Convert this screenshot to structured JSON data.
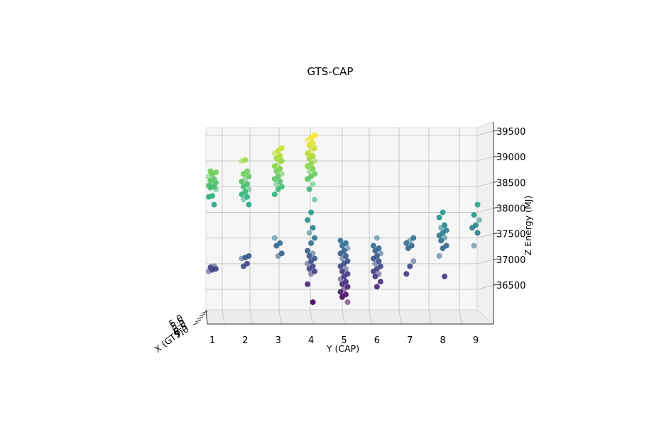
{
  "chart_data": {
    "type": "scatter",
    "projection": "3d",
    "title": "GTS-CAP",
    "xlabel": "X (GTS)",
    "ylabel": "Y (CAP)",
    "zlabel": "Z Energy (MJ)",
    "x_ticks": [
      "7.0",
      "6.5",
      "6.0",
      "5.5",
      "5.0"
    ],
    "y_ticks": [
      "1",
      "2",
      "3",
      "4",
      "5",
      "6",
      "7",
      "8",
      "9"
    ],
    "z_ticks": [
      "36500",
      "37000",
      "37500",
      "38000",
      "38500",
      "39000",
      "39500"
    ],
    "ylim": [
      1,
      9
    ],
    "zlim": [
      36100,
      39650
    ],
    "colormap": "viridis",
    "grid": true,
    "pane_color": "#f6f6f6",
    "series": [
      {
        "groups": [
          {
            "y": 1,
            "z": [
              36850,
              36880,
              36900,
              36930,
              36950
            ]
          },
          {
            "y": 1,
            "z": [
              38150,
              38300,
              38320,
              38450,
              38480,
              38500,
              38520,
              38550,
              38580,
              38620,
              38650,
              38700,
              38750,
              38780,
              38800
            ]
          },
          {
            "y": 2,
            "z": [
              36950,
              37000,
              37100,
              37120,
              37150
            ]
          },
          {
            "y": 2,
            "z": [
              38150,
              38250,
              38300,
              38350,
              38400,
              38450,
              38500,
              38550,
              38600,
              38650,
              38700,
              38750,
              38800,
              39000,
              39020
            ]
          },
          {
            "y": 3,
            "z": [
              37150,
              37200,
              37350,
              37400,
              37500
            ]
          },
          {
            "y": 3,
            "z": [
              38350,
              38450,
              38500,
              38550,
              38600,
              38650,
              38700,
              38750,
              38800,
              38850,
              38900,
              38950,
              39000,
              39050,
              39100,
              39150,
              39200,
              39250
            ]
          },
          {
            "y": 4,
            "z": [
              36250,
              36600,
              36800,
              36850,
              36900,
              36950,
              37000,
              37050,
              37100,
              37150,
              37200,
              37250,
              37400,
              37500,
              37600,
              37700,
              37850,
              38000,
              38250
            ]
          },
          {
            "y": 4,
            "z": [
              38450,
              38550,
              38650,
              38700,
              38750,
              38800,
              38850,
              38900,
              38950,
              39000,
              39050,
              39100,
              39150,
              39200,
              39250,
              39300,
              39350,
              39400,
              39450,
              39500
            ]
          },
          {
            "y": 5,
            "z": [
              36250,
              36350,
              36400,
              36450,
              36500,
              36550,
              36600,
              36650,
              36700,
              36750,
              36800,
              36850,
              36900,
              36950,
              37000,
              37050,
              37100,
              37150,
              37200,
              37250,
              37300,
              37350,
              37400,
              37450
            ]
          },
          {
            "y": 6,
            "z": [
              36550,
              36650,
              36750,
              36800,
              36850,
              36900,
              36950,
              37000,
              37050,
              37100,
              37150,
              37200,
              37250,
              37300,
              37350,
              37500
            ]
          },
          {
            "y": 7,
            "z": [
              36800,
              36950,
              37050,
              37300,
              37350,
              37400,
              37450,
              37500
            ]
          },
          {
            "y": 8,
            "z": [
              36750,
              37150,
              37300,
              37350,
              37450,
              37500,
              37550,
              37600,
              37650,
              37700,
              37750,
              37900,
              38000
            ]
          },
          {
            "y": 9,
            "z": [
              37350,
              37600,
              37700,
              37750,
              37850,
              37950,
              38150
            ]
          }
        ]
      }
    ]
  }
}
